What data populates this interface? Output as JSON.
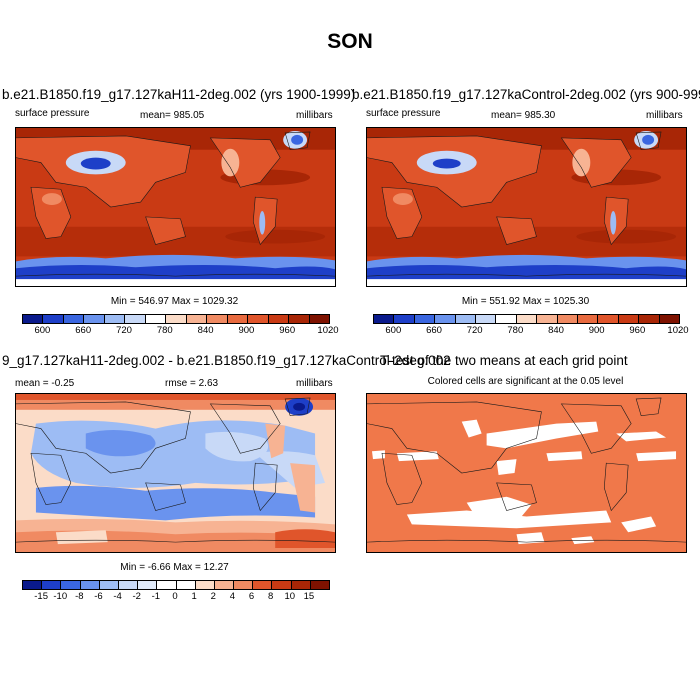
{
  "figure": {
    "title": "SON"
  },
  "panels": [
    {
      "id": "p1",
      "title": "b.e21.B1850.f19_g17.127kaH11-2deg.002 (yrs 1900-1999)",
      "left_label": "surface pressure",
      "center_label": "mean= 985.05",
      "right_label": "millibars",
      "stats": "Min = 546.97 Max = 1029.32"
    },
    {
      "id": "p2",
      "title": "b.e21.B1850.f19_g17.127kaControl-2deg.002 (yrs 900-999)",
      "left_label": "surface pressure",
      "center_label": "mean= 985.30",
      "right_label": "millibars",
      "stats": "Min = 551.92 Max = 1025.30"
    },
    {
      "id": "p3",
      "title": "9_g17.127kaH11-2deg.002 - b.e21.B1850.f19_g17.127kaControl-2deg.002",
      "left_label": "mean =  -0.25",
      "center_label": "rmse =   2.63",
      "right_label": "millibars",
      "stats": "Min =  -6.66 Max =  12.27"
    },
    {
      "id": "p4",
      "title": "T-test of the two means at each grid point",
      "subtitle": "Colored cells are significant at the 0.05 level"
    }
  ],
  "colorbars": {
    "pressure": {
      "labels": [
        "600",
        "660",
        "720",
        "780",
        "840",
        "900",
        "960",
        "1020"
      ],
      "colors": [
        "#0a1a8c",
        "#1e3fc8",
        "#3a66e0",
        "#6a93ee",
        "#9dbcf4",
        "#c8d9f7",
        "#ffffff",
        "#fbdcc8",
        "#f7b393",
        "#f08a62",
        "#e86a3f",
        "#e0552b",
        "#c93a14",
        "#a82606",
        "#7e1200"
      ]
    },
    "difference": {
      "labels": [
        "-15",
        "-10",
        "-8",
        "-6",
        "-4",
        "-2",
        "-1",
        "0",
        "1",
        "2",
        "4",
        "6",
        "8",
        "10",
        "15"
      ],
      "colors": [
        "#0a1a8c",
        "#1e3fc8",
        "#3a66e0",
        "#6a93ee",
        "#9dbcf4",
        "#c8d9f7",
        "#e0eafa",
        "#ffffff",
        "#ffffff",
        "#fbdcc8",
        "#f7b393",
        "#f08a62",
        "#e0552b",
        "#c93a14",
        "#a82606",
        "#7e1200"
      ]
    }
  },
  "map_colors": {
    "ocean_low_lat": "#c93a14",
    "ocean_mid_lat": "#a82606",
    "land": "#e0552b",
    "high_terrain": "#ffffff",
    "very_low_pressure": "#1e3fc8",
    "southern_ocean": "#3a66e0",
    "ttest_fill": "#f0784a",
    "diff_negative": "#9dbcf4",
    "diff_positive": "#f7b393",
    "diff_strong_positive": "#e0552b",
    "coast": "#1a1a1a"
  }
}
